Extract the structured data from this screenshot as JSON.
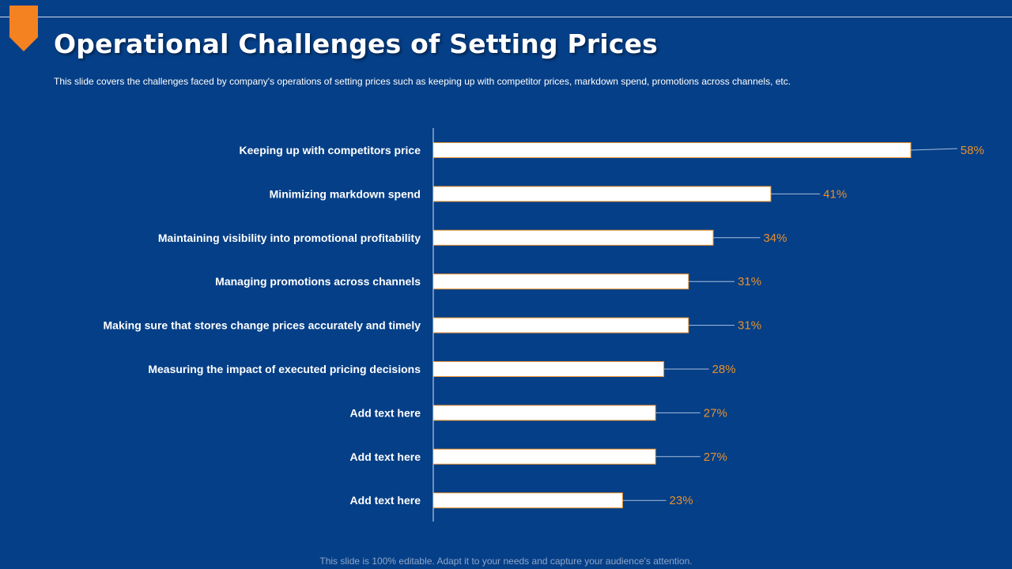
{
  "slide": {
    "title": "Operational Challenges of Setting Prices",
    "subtitle": "This slide covers the challenges faced by company's  operations of setting prices such as keeping  up with competitor  prices,  markdown spend, promotions  across channels,  etc.",
    "footer": "This slide is 100% editable. Adapt it to your needs and capture your audience's attention."
  },
  "colors": {
    "background": "#053F87",
    "accent": "#F58220",
    "bar_fill": "#FFFFFF",
    "bar_stroke": "#E8912D",
    "label_text": "#FFFFFF",
    "value_text": "#E8912D",
    "leader": "#A9BEDC"
  },
  "chart_data": {
    "type": "bar",
    "orientation": "horizontal",
    "categories": [
      "Keeping up with competitors price",
      "Minimizing markdown spend",
      "Maintaining visibility into promotional profitability",
      "Managing promotions across channels",
      "Making sure that stores change prices accurately and timely",
      "Measuring the impact of executed pricing decisions",
      "Add text here",
      "Add text here",
      "Add text here"
    ],
    "values": [
      58,
      41,
      34,
      31,
      31,
      28,
      27,
      27,
      23
    ],
    "value_labels": [
      "58%",
      "41%",
      "34%",
      "31%",
      "31%",
      "28%",
      "27%",
      "27%",
      "23%"
    ],
    "unit": "%",
    "xlim": [
      0,
      60
    ],
    "grid": false,
    "legend": "none",
    "title": "",
    "xlabel": "",
    "ylabel": ""
  }
}
